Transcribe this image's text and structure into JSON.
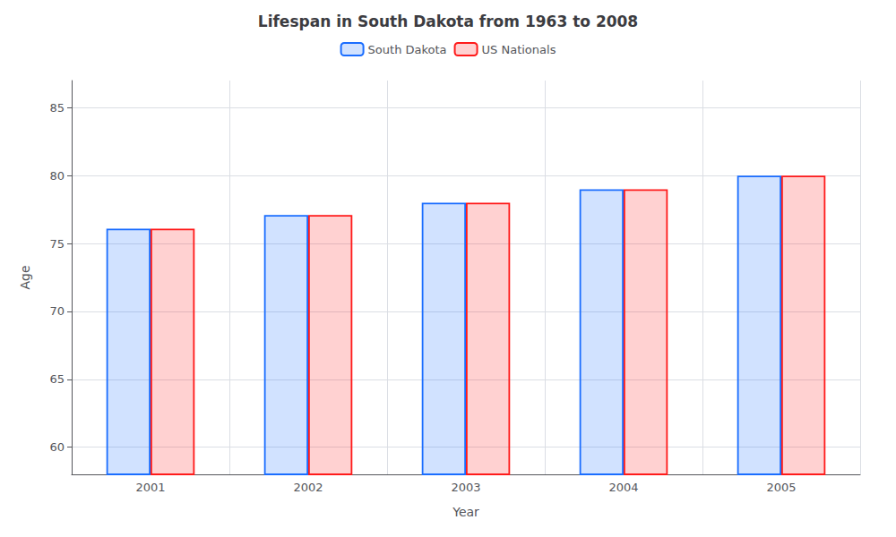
{
  "chart_data": {
    "type": "bar",
    "title": "Lifespan in South Dakota from 1963 to 2008",
    "xlabel": "Year",
    "ylabel": "Age",
    "categories": [
      "2001",
      "2002",
      "2003",
      "2004",
      "2005"
    ],
    "series": [
      {
        "name": "South Dakota",
        "color": "#1a6dff",
        "values": [
          76.1,
          77.1,
          78.0,
          79.0,
          80.0
        ]
      },
      {
        "name": "US Nationals",
        "color": "#ff1a1a",
        "values": [
          76.1,
          77.1,
          78.0,
          79.0,
          80.0
        ]
      }
    ],
    "ylim": [
      58,
      87
    ],
    "yticks": [
      60,
      65,
      70,
      75,
      80,
      85
    ],
    "grid": true,
    "legend": "top"
  }
}
